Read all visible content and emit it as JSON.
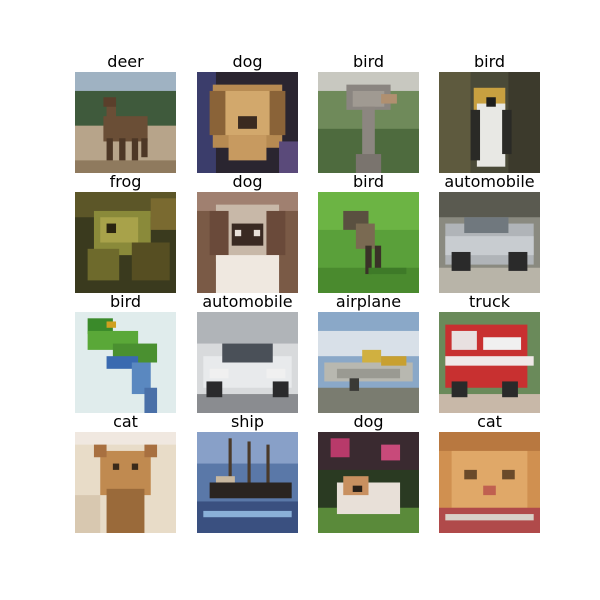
{
  "figure": {
    "labels": [
      "deer",
      "dog",
      "bird",
      "bird",
      "frog",
      "dog",
      "bird",
      "automobile",
      "bird",
      "automobile",
      "airplane",
      "truck",
      "cat",
      "ship",
      "dog",
      "cat"
    ]
  }
}
